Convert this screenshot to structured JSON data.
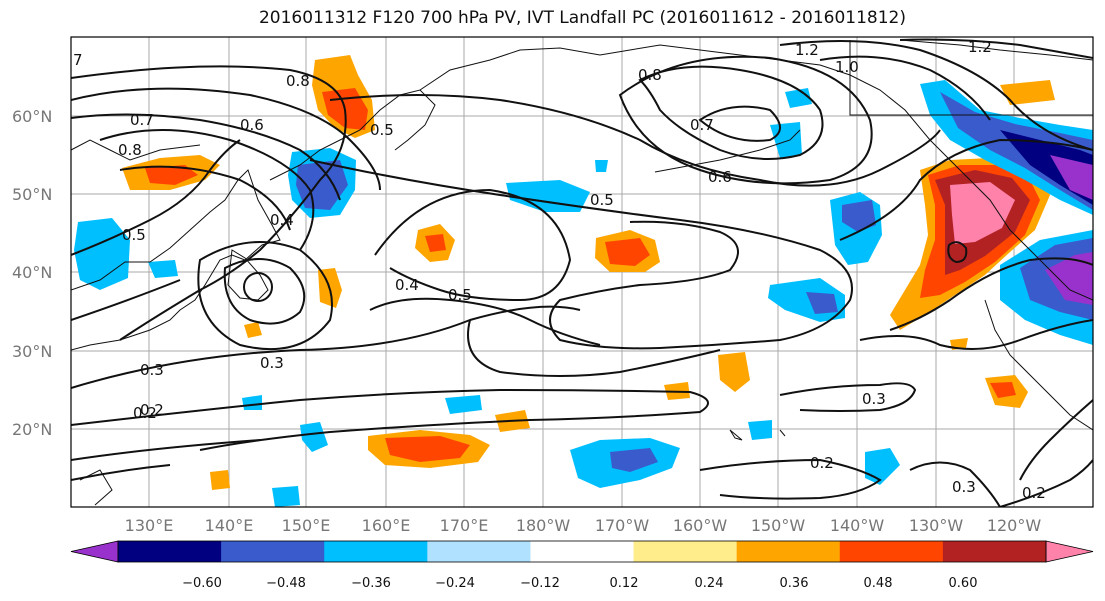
{
  "title": "2016011312 F120 700 hPa PV, IVT Landfall PC (2016011612 - 2016011812)",
  "map": {
    "lat_labels": [
      "60°N",
      "50°N",
      "40°N",
      "30°N",
      "20°N"
    ],
    "lon_labels": [
      "130°E",
      "140°E",
      "150°E",
      "160°E",
      "170°E",
      "180°W",
      "170°W",
      "160°W",
      "150°W",
      "140°W",
      "130°W",
      "120°W"
    ],
    "contour_labels": [
      "0.8",
      "0.7",
      "0.6",
      "0.5",
      "0.4",
      "0.3",
      "0.2",
      "1.2",
      "1.0",
      "0.7",
      "0.6",
      "0.5",
      "0.8",
      "0.5",
      "0.4",
      "0.3",
      "0.2",
      "0.3",
      "0.2",
      "0.2",
      "0.3",
      "1.2",
      "7",
      "0.8",
      "0.5"
    ]
  },
  "colorbar": {
    "colors": [
      "#9932CC",
      "#000080",
      "#3A5BCC",
      "#00BFFF",
      "#B0E2FF",
      "#FFFFFF",
      "#FFEC8B",
      "#FFA500",
      "#FF4500",
      "#B22222",
      "#FF82AB"
    ],
    "tick_labels": [
      "−0.60",
      "−0.48",
      "−0.36",
      "−0.24",
      "−0.12",
      "0.12",
      "0.24",
      "0.36",
      "0.48",
      "0.60"
    ]
  }
}
